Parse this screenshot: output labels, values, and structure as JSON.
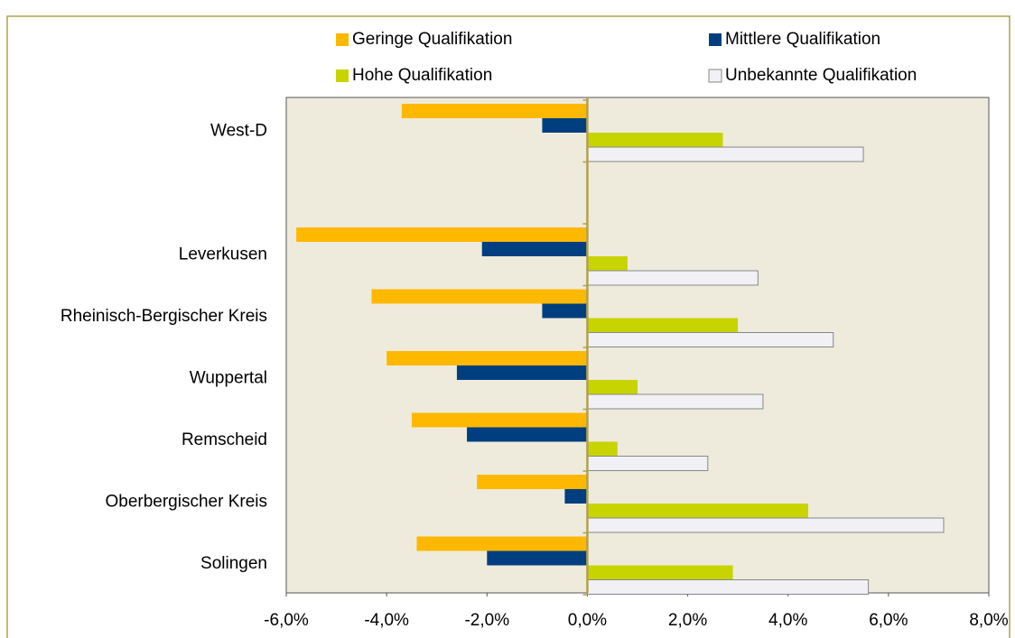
{
  "chart_data": {
    "type": "hbar",
    "categories": [
      "West-D",
      null,
      "Leverkusen",
      "Rheinisch-Bergischer Kreis",
      "Wuppertal",
      "Remscheid",
      "Oberbergischer Kreis",
      "Solingen"
    ],
    "series": [
      {
        "name": "Geringe Qualifikation",
        "color": "#FFB800",
        "values": [
          -3.7,
          null,
          -5.8,
          -4.3,
          -4.0,
          -3.5,
          -2.2,
          -3.4
        ]
      },
      {
        "name": "Mittlere Qualifikation",
        "color": "#003F7F",
        "values": [
          -0.9,
          null,
          -2.1,
          -0.9,
          -2.6,
          -2.4,
          -0.45,
          -2.0
        ]
      },
      {
        "name": "Hohe Qualifikation",
        "color": "#C8D400",
        "values": [
          2.7,
          null,
          0.8,
          3.0,
          1.0,
          0.6,
          4.4,
          2.9
        ]
      },
      {
        "name": "Unbekannte Qualifikation",
        "color": "#F0F0F5",
        "values": [
          5.5,
          null,
          3.4,
          4.9,
          3.5,
          2.4,
          7.1,
          5.6
        ]
      }
    ],
    "xlim": [
      -6,
      8
    ],
    "xticks": [
      {
        "value": -6,
        "label": "-6,0%"
      },
      {
        "value": -4,
        "label": "-4,0%"
      },
      {
        "value": -2,
        "label": "-2,0%"
      },
      {
        "value": 0,
        "label": "0,0%"
      },
      {
        "value": 2,
        "label": "2,0%"
      },
      {
        "value": 4,
        "label": "4,0%"
      },
      {
        "value": 6,
        "label": "6,0%"
      },
      {
        "value": 8,
        "label": "8,0%"
      }
    ],
    "legend": "top"
  }
}
